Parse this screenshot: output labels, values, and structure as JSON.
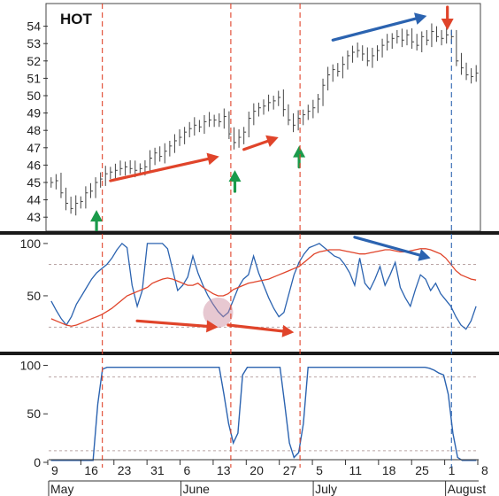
{
  "chart_data": [
    {
      "type": "ohlc",
      "title": "HOT",
      "ylim": [
        42.5,
        55
      ],
      "yticks": [
        43,
        44,
        45,
        46,
        47,
        48,
        49,
        50,
        51,
        52,
        53,
        54
      ],
      "xticks": [
        "9",
        "16",
        "23",
        "31",
        "6",
        "13",
        "20",
        "27",
        "5",
        "11",
        "18",
        "25",
        "1",
        "8"
      ],
      "months": [
        "May",
        "June",
        "July",
        "August"
      ],
      "close": [
        45.0,
        45.1,
        44.4,
        43.8,
        43.5,
        43.8,
        43.9,
        44.4,
        44.5,
        45.0,
        45.2,
        45.5,
        45.6,
        45.7,
        45.8,
        45.9,
        45.8,
        45.7,
        45.8,
        45.9,
        46.4,
        46.7,
        46.5,
        46.8,
        47.1,
        47.4,
        47.6,
        47.9,
        48.1,
        48.3,
        48.2,
        48.5,
        48.6,
        48.6,
        48.5,
        48.8,
        47.8,
        47.3,
        47.6,
        47.9,
        48.7,
        49.1,
        49.3,
        49.4,
        49.6,
        49.7,
        49.9,
        49.2,
        48.6,
        48.3,
        48.7,
        48.9,
        49.1,
        49.3,
        49.8,
        50.6,
        51.2,
        51.5,
        51.4,
        51.8,
        52.3,
        52.5,
        52.6,
        52.4,
        52.0,
        52.3,
        52.6,
        52.9,
        53.1,
        53.3,
        53.4,
        53.2,
        53.5,
        53.1,
        52.9,
        53.4,
        53.2,
        53.7,
        53.4,
        53.3,
        53.5,
        53.4,
        52.0,
        51.6,
        51.2,
        51.1,
        51.3
      ],
      "vlines_red_after_index": [
        10,
        36,
        50
      ],
      "vline_blue_after_index": 81,
      "up_arrows_index": [
        9,
        37,
        50
      ],
      "down_arrow_index": 80
    },
    {
      "type": "line",
      "ylim": [
        0,
        105
      ],
      "yticks": [
        50,
        100
      ],
      "reference_levels": [
        80,
        20
      ],
      "series": [
        {
          "color": "#2b63b0",
          "values": [
            45,
            36,
            28,
            22,
            30,
            42,
            50,
            58,
            66,
            72,
            76,
            80,
            86,
            94,
            100,
            96,
            60,
            40,
            55,
            100,
            100,
            100,
            100,
            95,
            75,
            55,
            60,
            68,
            88,
            72,
            60,
            50,
            42,
            35,
            30,
            34,
            46,
            58,
            66,
            70,
            88,
            72,
            60,
            48,
            38,
            30,
            34,
            52,
            70,
            82,
            90,
            96,
            98,
            100,
            96,
            92,
            88,
            86,
            80,
            72,
            60,
            86,
            62,
            56,
            66,
            78,
            60,
            70,
            82,
            58,
            48,
            40,
            56,
            70,
            66,
            55,
            62,
            52,
            46,
            40,
            30,
            22,
            18,
            26,
            40
          ]
        },
        {
          "color": "#e0442a",
          "values": [
            28,
            26,
            24,
            22,
            21,
            22,
            24,
            26,
            28,
            30,
            32,
            35,
            38,
            42,
            46,
            50,
            52,
            54,
            56,
            58,
            62,
            64,
            66,
            67,
            66,
            64,
            62,
            60,
            60,
            62,
            58,
            55,
            52,
            50,
            50,
            52,
            56,
            58,
            60,
            62,
            63,
            64,
            65,
            66,
            68,
            70,
            72,
            74,
            76,
            78,
            82,
            86,
            90,
            92,
            93,
            94,
            94,
            94,
            93,
            92,
            91,
            90,
            90,
            91,
            92,
            93,
            94,
            94,
            93,
            92,
            92,
            93,
            94,
            95,
            95,
            94,
            92,
            90,
            86,
            80,
            74,
            70,
            68,
            66,
            65
          ]
        }
      ]
    },
    {
      "type": "line",
      "ylim": [
        0,
        105
      ],
      "yticks": [
        0,
        50,
        100
      ],
      "reference_levels": [
        88,
        12
      ],
      "series": [
        {
          "color": "#2b63b0",
          "values": [
            2,
            2,
            2,
            2,
            2,
            2,
            2,
            2,
            2,
            2,
            60,
            96,
            98,
            98,
            98,
            98,
            98,
            98,
            98,
            98,
            98,
            98,
            98,
            98,
            98,
            98,
            98,
            98,
            98,
            98,
            98,
            98,
            98,
            98,
            98,
            98,
            98,
            70,
            40,
            20,
            30,
            90,
            98,
            98,
            98,
            98,
            98,
            98,
            98,
            98,
            60,
            20,
            5,
            10,
            40,
            98,
            98,
            98,
            98,
            98,
            98,
            98,
            98,
            98,
            98,
            98,
            98,
            98,
            98,
            98,
            98,
            98,
            98,
            98,
            98,
            98,
            98,
            98,
            98,
            98,
            98,
            97,
            95,
            92,
            90,
            70,
            30,
            5,
            2,
            2,
            2,
            2
          ]
        }
      ]
    }
  ]
}
